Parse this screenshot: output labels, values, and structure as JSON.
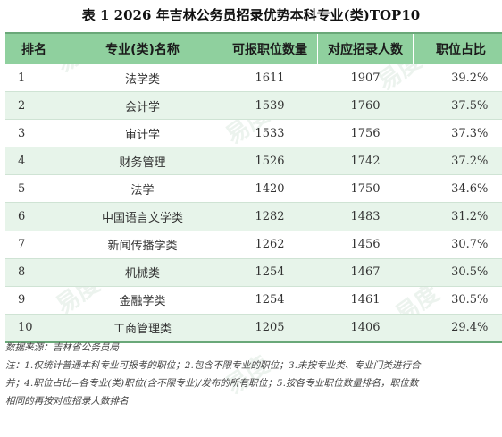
{
  "title": "表 1  2026 年吉林公务员招录优势本科专业(类)TOP10",
  "table": {
    "headers": [
      "排名",
      "专业(类)名称",
      "可报职位数量",
      "对应招录人数",
      "职位占比"
    ],
    "rows": [
      {
        "rank": "1",
        "major": "法学类",
        "positions": "1611",
        "recruits": "1907",
        "ratio": "39.2%"
      },
      {
        "rank": "2",
        "major": "会计学",
        "positions": "1539",
        "recruits": "1760",
        "ratio": "37.5%"
      },
      {
        "rank": "3",
        "major": "审计学",
        "positions": "1533",
        "recruits": "1756",
        "ratio": "37.3%"
      },
      {
        "rank": "4",
        "major": "财务管理",
        "positions": "1526",
        "recruits": "1742",
        "ratio": "37.2%"
      },
      {
        "rank": "5",
        "major": "法学",
        "positions": "1420",
        "recruits": "1750",
        "ratio": "34.6%"
      },
      {
        "rank": "6",
        "major": "中国语言文学类",
        "positions": "1282",
        "recruits": "1483",
        "ratio": "31.2%"
      },
      {
        "rank": "7",
        "major": "新闻传播学类",
        "positions": "1262",
        "recruits": "1456",
        "ratio": "30.7%"
      },
      {
        "rank": "8",
        "major": "机械类",
        "positions": "1254",
        "recruits": "1467",
        "ratio": "30.5%"
      },
      {
        "rank": "9",
        "major": "金融学类",
        "positions": "1254",
        "recruits": "1461",
        "ratio": "30.5%"
      },
      {
        "rank": "10",
        "major": "工商管理类",
        "positions": "1205",
        "recruits": "1406",
        "ratio": "29.4%"
      }
    ]
  },
  "notes": {
    "source": "数据来源：吉林省公务员局",
    "line1": "注：1.仅统计普通本科专业可报考的职位；2.包含不限专业的职位；3.未按专业类、专业门类进行合",
    "line2": "并；4.职位占比=各专业(类)职位(含不限专业)/发布的所有职位；5.按各专业职位数量排名，职位数",
    "line3": "相同的再按对应招录人数排名"
  },
  "watermark": "易度"
}
